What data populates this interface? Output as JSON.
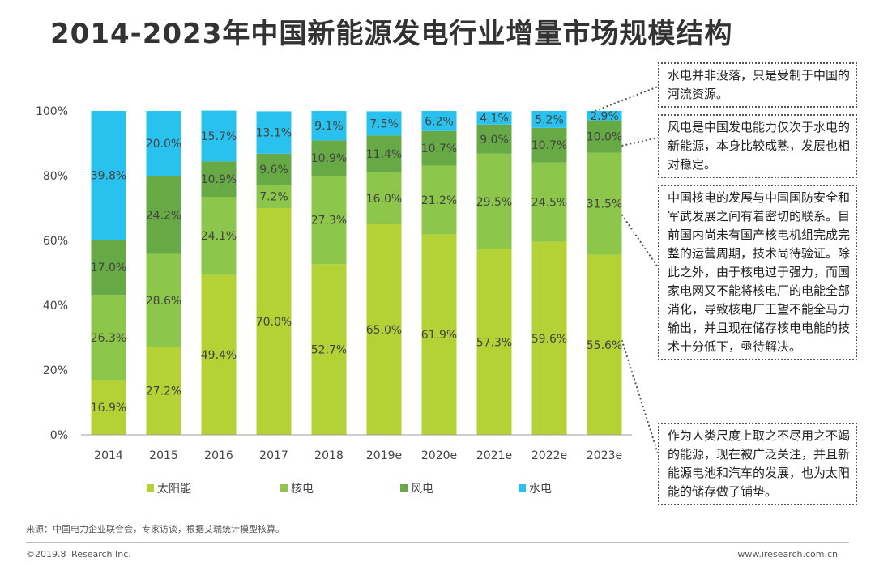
{
  "title": "2014-2023年中国新能源发电行业增量市场规模结构",
  "chart_data": {
    "type": "bar",
    "stacked": true,
    "categories": [
      "2014",
      "2015",
      "2016",
      "2017",
      "2018",
      "2019e",
      "2020e",
      "2021e",
      "2022e",
      "2023e"
    ],
    "series": [
      {
        "name": "太阳能",
        "color": "#b4d135",
        "values": [
          16.9,
          27.2,
          49.4,
          70.0,
          52.7,
          65.0,
          61.9,
          57.3,
          59.6,
          55.6
        ]
      },
      {
        "name": "核电",
        "color": "#8cc64a",
        "values": [
          26.3,
          28.6,
          24.1,
          7.2,
          27.3,
          16.0,
          21.2,
          29.5,
          24.5,
          31.5
        ]
      },
      {
        "name": "风电",
        "color": "#66a945",
        "values": [
          17.0,
          24.2,
          10.9,
          9.6,
          10.9,
          11.4,
          10.7,
          9.0,
          10.7,
          10.0
        ]
      },
      {
        "name": "水电",
        "color": "#29c2ef",
        "values": [
          39.8,
          20.0,
          15.7,
          13.1,
          9.1,
          7.5,
          6.2,
          4.1,
          5.2,
          2.9
        ]
      }
    ],
    "y_ticks": [
      "0%",
      "20%",
      "40%",
      "60%",
      "80%",
      "100%"
    ],
    "ylim": [
      0,
      100
    ],
    "legend_position": "bottom",
    "grid": false
  },
  "notes": [
    "水电并非没落，只是受制于中国的河流资源。",
    "风电是中国发电能力仅次于水电的新能源，本身比较成熟，发展也相对稳定。",
    "中国核电的发展与中国国防安全和军武发展之间有着密切的联系。目前国内尚未有国产核电机组完成完整的运营周期，技术尚待验证。除此之外，由于核电过于强力，而国家电网又不能将核电厂的电能全部消化，导致核电厂王望不能全马力输出，并且现在储存核电电能的技术十分低下，亟待解决。",
    "作为人类尺度上取之不尽用之不竭的能源，现在被广泛关注，并且新能源电池和汽车的发展，也为太阳能的储存做了铺垫。"
  ],
  "footer": {
    "source": "来源：中国电力企业联合会，专家访谈，根据艾瑞统计模型核算。",
    "copyright": "©2019.8 iResearch Inc.",
    "site": "www.iresearch.com.cn"
  }
}
